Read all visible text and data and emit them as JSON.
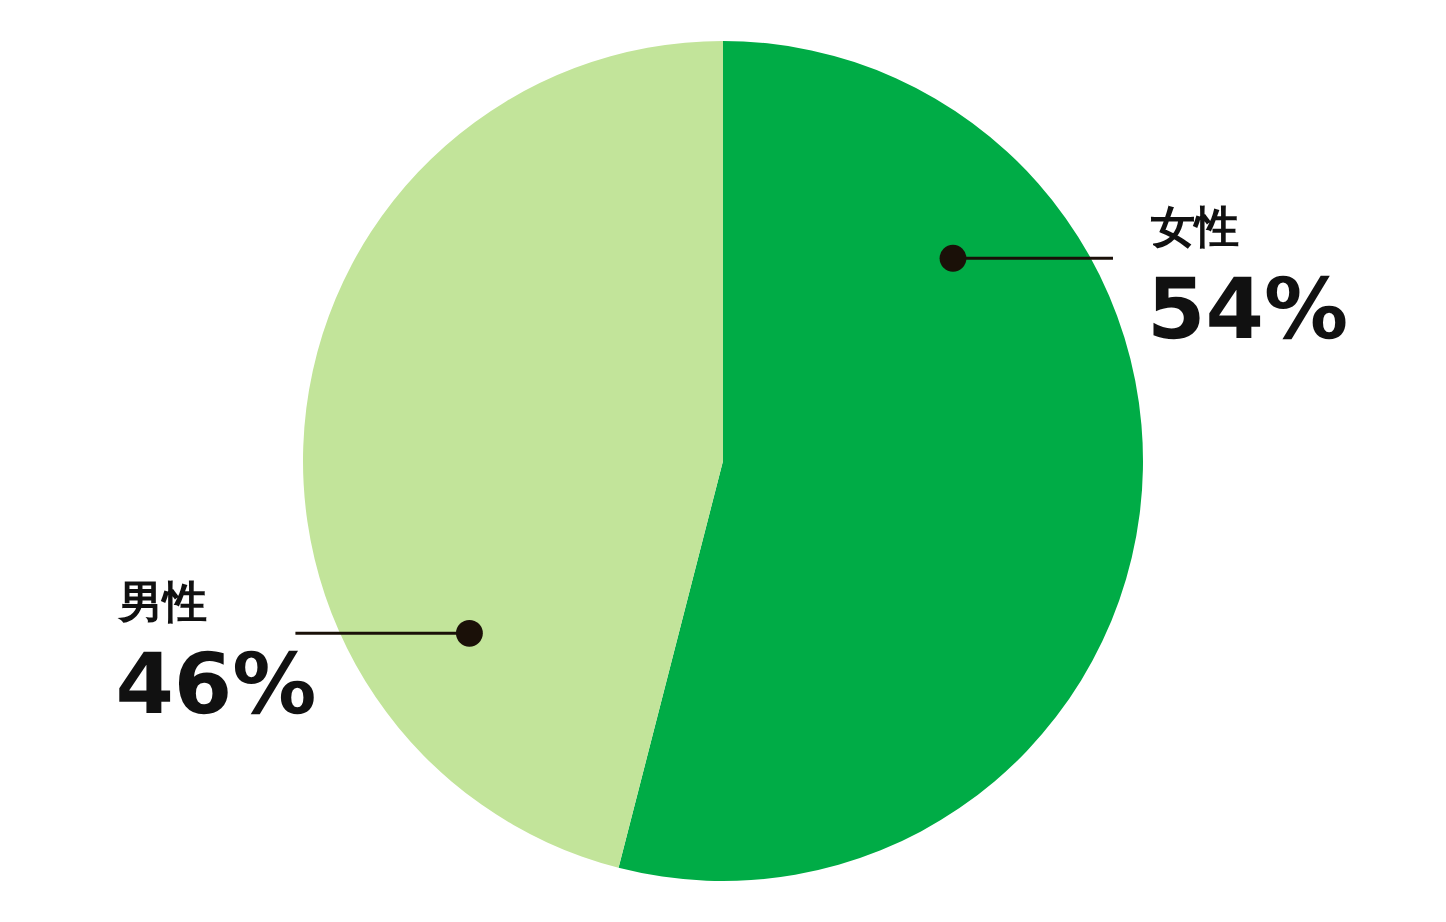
{
  "chart_data": {
    "type": "pie",
    "categories": [
      "女性",
      "男性"
    ],
    "values": [
      54,
      46
    ],
    "colors": [
      "#00ac46",
      "#c2e49a"
    ],
    "value_labels": [
      "54%",
      "46%"
    ]
  }
}
